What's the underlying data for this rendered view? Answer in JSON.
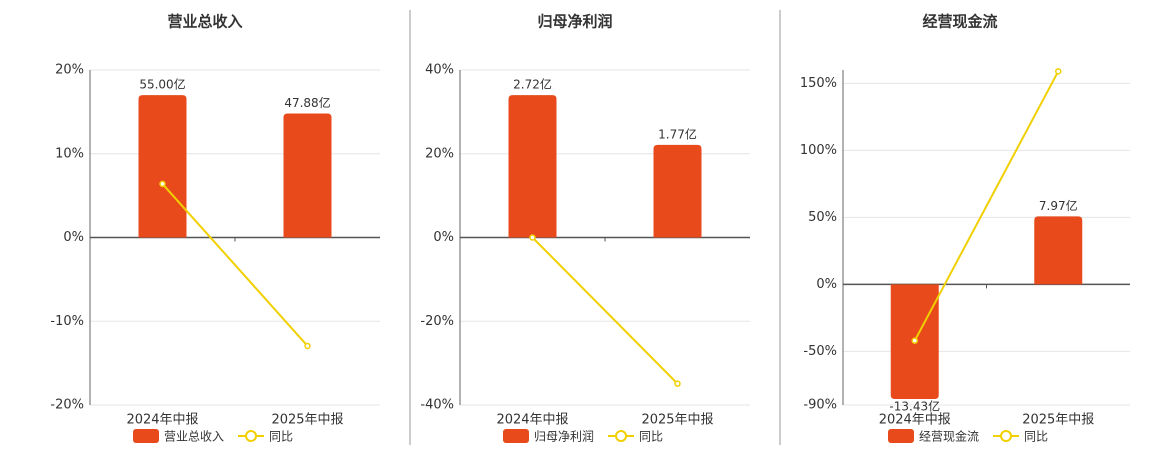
{
  "chart_data": [
    {
      "type": "bar",
      "title": "营业总收入",
      "categories": [
        "2024年中报",
        "2025年中报"
      ],
      "series": [
        {
          "name": "营业总收入",
          "type": "bar",
          "color": "#e84a1c",
          "values": [
            55.0,
            47.88
          ],
          "value_labels": [
            "55.00亿",
            "47.88亿"
          ]
        },
        {
          "name": "同比",
          "type": "line",
          "color": "#f0d000",
          "values": [
            6.4,
            -12.95
          ]
        }
      ],
      "ylim": [
        -20,
        20
      ],
      "yticks": [
        {
          "value": 20,
          "label": "20%"
        },
        {
          "value": 10,
          "label": "10%"
        },
        {
          "value": 0,
          "label": "0%"
        },
        {
          "value": -10,
          "label": "-10%"
        },
        {
          "value": -20,
          "label": "-20%"
        }
      ],
      "grid": true
    },
    {
      "type": "bar",
      "title": "归母净利润",
      "categories": [
        "2024年中报",
        "2025年中报"
      ],
      "series": [
        {
          "name": "归母净利润",
          "type": "bar",
          "color": "#e84a1c",
          "values": [
            2.72,
            1.77
          ],
          "value_labels": [
            "2.72亿",
            "1.77亿"
          ]
        },
        {
          "name": "同比",
          "type": "line",
          "color": "#f0d000",
          "values": [
            0,
            -34.9
          ]
        }
      ],
      "ylim": [
        -40,
        40
      ],
      "yticks": [
        {
          "value": 40,
          "label": "40%"
        },
        {
          "value": 20,
          "label": "20%"
        },
        {
          "value": 0,
          "label": "0%"
        },
        {
          "value": -20,
          "label": "-20%"
        },
        {
          "value": -40,
          "label": "-40%"
        }
      ],
      "grid": true
    },
    {
      "type": "bar",
      "title": "经营现金流",
      "categories": [
        "2024年中报",
        "2025年中报"
      ],
      "series": [
        {
          "name": "经营现金流",
          "type": "bar",
          "color": "#e84a1c",
          "values": [
            -13.43,
            7.97
          ],
          "value_labels": [
            "-13.43亿",
            "7.97亿"
          ]
        },
        {
          "name": "同比",
          "type": "line",
          "color": "#f0d000",
          "values": [
            -42,
            159
          ]
        }
      ],
      "ylim": [
        -90,
        160
      ],
      "yticks": [
        {
          "value": 150,
          "label": "150%"
        },
        {
          "value": 100,
          "label": "100%"
        },
        {
          "value": 50,
          "label": "50%"
        },
        {
          "value": 0,
          "label": "0%"
        },
        {
          "value": -50,
          "label": "-50%"
        },
        {
          "value": -90,
          "label": "-90%"
        }
      ],
      "grid": true
    }
  ]
}
